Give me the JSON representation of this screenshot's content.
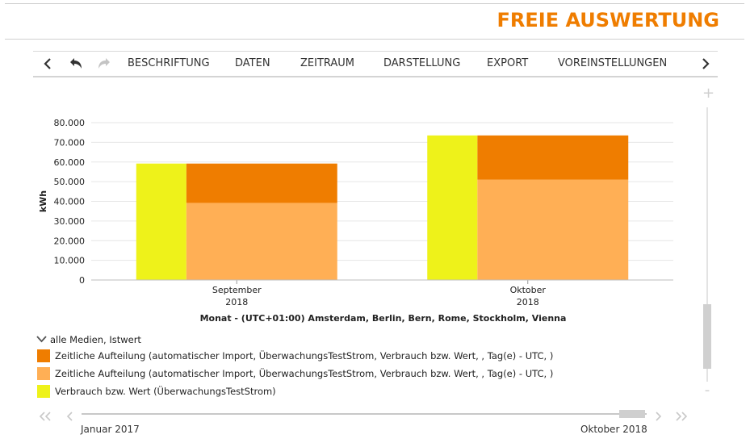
{
  "page": {
    "title": "FREIE AUSWERTUNG"
  },
  "toolbar": {
    "items": [
      "BESCHRIFTUNG",
      "DATEN",
      "ZEITRAUM",
      "DARSTELLUNG",
      "EXPORT",
      "VOREINSTELLUNGEN"
    ],
    "icons": [
      "chevron-left-icon",
      "undo-icon",
      "redo-icon",
      "chevron-right-icon"
    ]
  },
  "chart_data": {
    "type": "bar",
    "categories": [
      "September\n2018",
      "Oktober\n2018"
    ],
    "category_lines": [
      [
        "September",
        "2018"
      ],
      [
        "Oktober",
        "2018"
      ]
    ],
    "series": [
      {
        "name": "Zeitliche Aufteilung (automatischer Import, ÜberwachungsTestStrom, Verbrauch bzw. Wert, , Tag(e) - UTC, )",
        "color": "#ef7d00",
        "stack": "a",
        "values": [
          20000,
          22500
        ]
      },
      {
        "name": "Zeitliche Aufteilung (automatischer Import, ÜberwachungsTestStrom, Verbrauch bzw. Wert, , Tag(e) - UTC, )",
        "color": "#ffaf55",
        "stack": "a",
        "values": [
          39200,
          51000
        ]
      },
      {
        "name": "Verbrauch bzw. Wert (ÜberwachungsTestStrom)",
        "color": "#eef21a",
        "stack": "b",
        "values": [
          59200,
          73500
        ]
      }
    ],
    "yticks": [
      "0",
      "10.000",
      "20.000",
      "30.000",
      "40.000",
      "50.000",
      "60.000",
      "70.000",
      "80.000"
    ],
    "ylim": [
      0,
      80000
    ],
    "ylabel": "kWh",
    "xlabel": "Monat - (UTC+01:00) Amsterdam, Berlin, Bern, Rome, Stockholm, Vienna",
    "grid": true,
    "legend_position": "bottom-left"
  },
  "legend": {
    "group_label": "alle Medien, Istwert",
    "items": [
      {
        "label": "Zeitliche Aufteilung (automatischer Import, ÜberwachungsTestStrom, Verbrauch bzw. Wert, , Tag(e) - UTC, )",
        "color": "#ef7d00"
      },
      {
        "label": "Zeitliche Aufteilung (automatischer Import, ÜberwachungsTestStrom, Verbrauch bzw. Wert, , Tag(e) - UTC, )",
        "color": "#ffaf55"
      },
      {
        "label": "Verbrauch bzw. Wert (ÜberwachungsTestStrom)",
        "color": "#eef21a"
      }
    ]
  },
  "navigator": {
    "start_label": "Januar 2017",
    "end_label": "Oktober 2018"
  },
  "zoom": {
    "plus": "+",
    "minus": "-"
  }
}
